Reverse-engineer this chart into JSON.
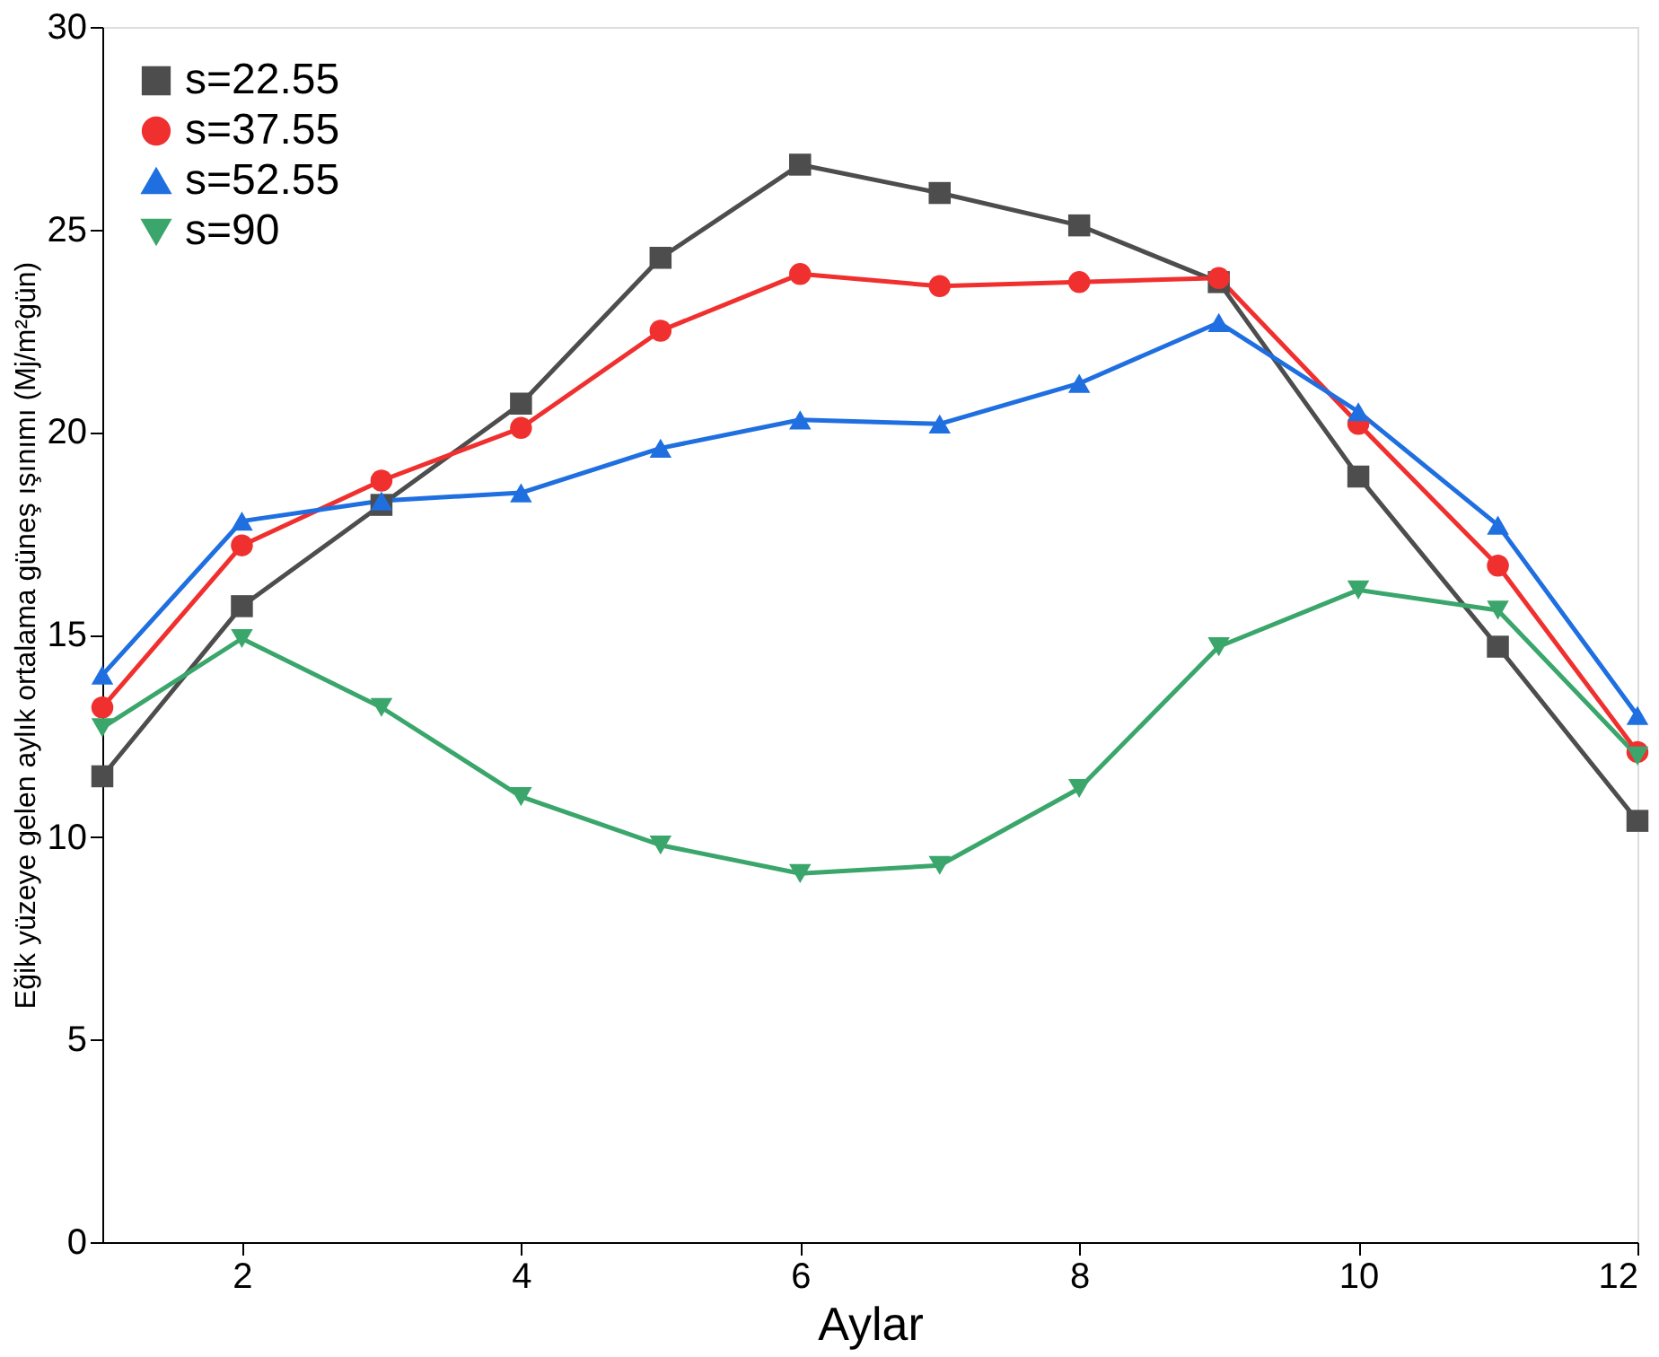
{
  "chart_data": {
    "type": "line",
    "xlabel": "Aylar",
    "ylabel": "Eğik yüzeye gelen aylık ortalama güneş ışınımı (Mj/m²gün)",
    "x": [
      1,
      2,
      3,
      4,
      5,
      6,
      7,
      8,
      9,
      10,
      11,
      12
    ],
    "xlim": [
      1,
      12
    ],
    "xticks": [
      2,
      4,
      6,
      8,
      10,
      12
    ],
    "ylim": [
      0,
      30
    ],
    "yticks": [
      0,
      5,
      10,
      15,
      20,
      25,
      30
    ],
    "grid": false,
    "legend": "top left",
    "line_style": "solid",
    "series": [
      {
        "name": "s=22.55",
        "color": "#4d4d4d",
        "marker": "square",
        "values": [
          11.5,
          15.7,
          18.2,
          20.7,
          24.3,
          26.6,
          25.9,
          25.1,
          23.7,
          18.9,
          14.7,
          10.4
        ]
      },
      {
        "name": "s=37.55",
        "color": "#f0302f",
        "marker": "circle",
        "values": [
          13.2,
          17.2,
          18.8,
          20.1,
          22.5,
          23.9,
          23.6,
          23.7,
          23.8,
          20.2,
          16.7,
          12.1
        ]
      },
      {
        "name": "s=52.55",
        "color": "#1f6fe0",
        "marker": "triangle",
        "values": [
          14.0,
          17.8,
          18.3,
          18.5,
          19.6,
          20.3,
          20.2,
          21.2,
          22.7,
          20.5,
          17.7,
          13.0
        ]
      },
      {
        "name": "s=90",
        "color": "#3aa66b",
        "marker": "triangle-down",
        "values": [
          12.7,
          14.9,
          13.2,
          11.0,
          9.8,
          9.1,
          9.3,
          11.2,
          14.7,
          16.1,
          15.6,
          12.0
        ]
      }
    ]
  }
}
